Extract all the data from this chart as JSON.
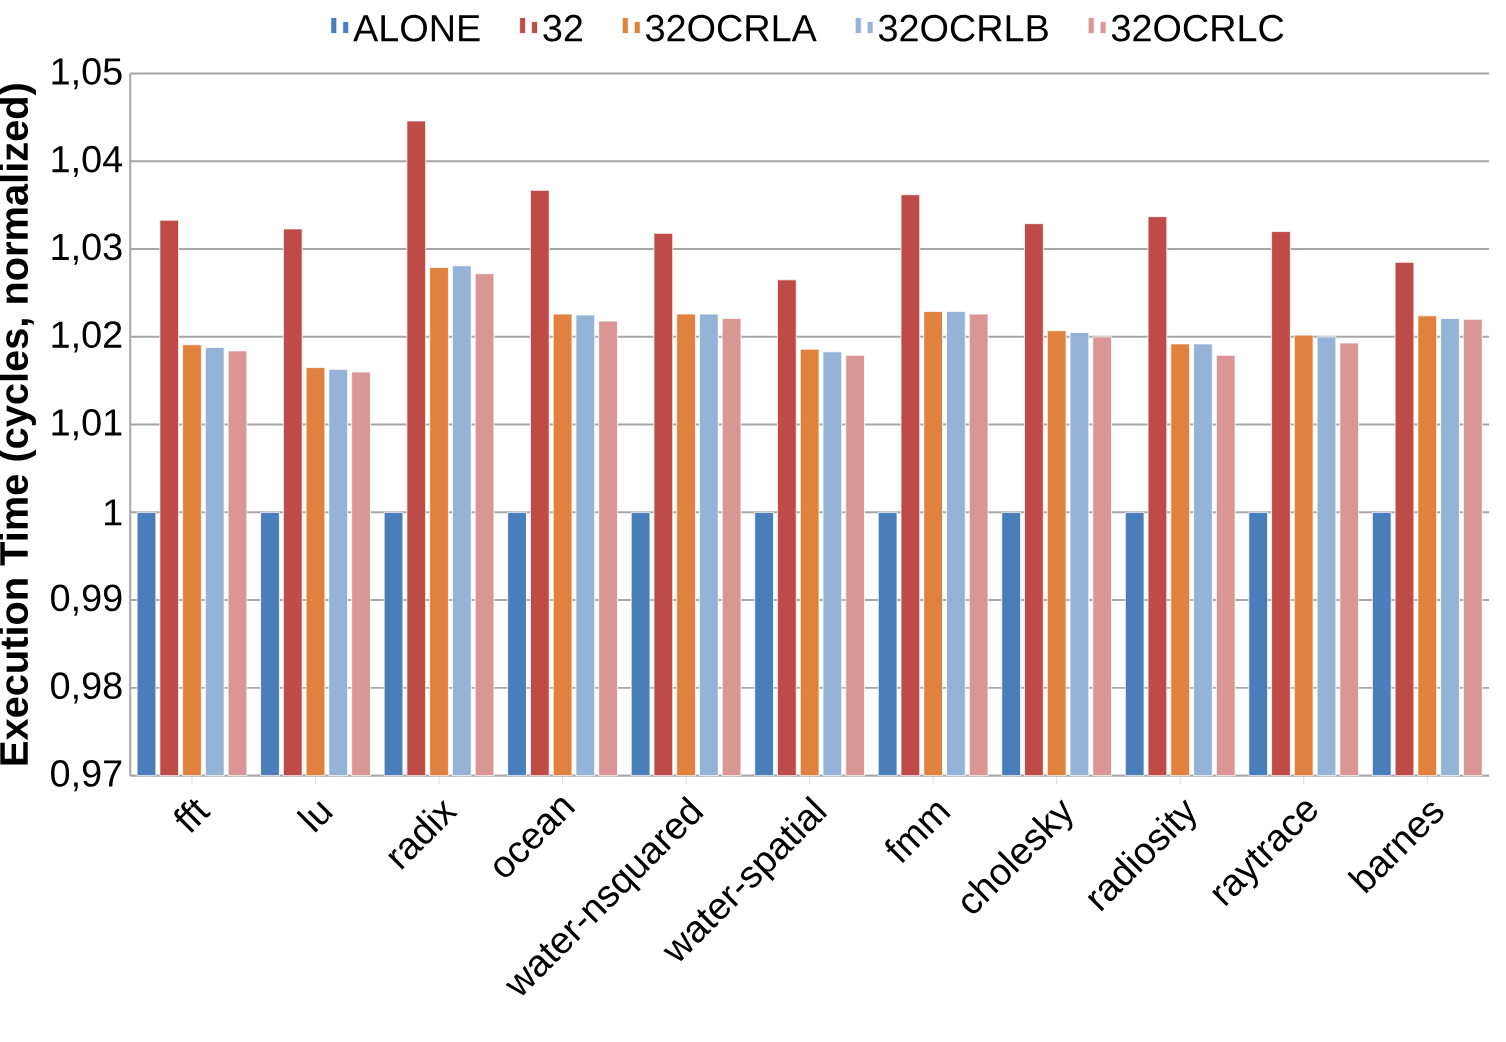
{
  "chart_data": {
    "type": "bar",
    "ylabel": "Execution Time (cycles, normalized)",
    "categories": [
      "fft",
      "lu",
      "radix",
      "ocean",
      "water-nsquared",
      "water-spatial",
      "fmm",
      "cholesky",
      "radiosity",
      "raytrace",
      "barnes"
    ],
    "series": [
      {
        "name": "ALONE",
        "color": "#4a7ebb",
        "values": [
          1,
          1,
          1,
          1,
          1,
          1,
          1,
          1,
          1,
          1,
          1
        ]
      },
      {
        "name": "32",
        "color": "#be4b48",
        "values": [
          1.0333,
          1.0323,
          1.0446,
          1.0367,
          1.0318,
          1.0265,
          1.0362,
          1.0329,
          1.0337,
          1.032,
          1.0285
        ]
      },
      {
        "name": "32OCRLA",
        "color": "#e0823d",
        "values": [
          1.0191,
          1.0165,
          1.0279,
          1.0226,
          1.0226,
          1.0186,
          1.0229,
          1.0207,
          1.0192,
          1.0202,
          1.0224
        ]
      },
      {
        "name": "32OCRLB",
        "color": "#95b3d7",
        "values": [
          1.0188,
          1.0163,
          1.0281,
          1.0225,
          1.0226,
          1.0183,
          1.0229,
          1.0205,
          1.0192,
          1.02,
          1.0221
        ]
      },
      {
        "name": "32OCRLC",
        "color": "#d99694",
        "values": [
          1.0184,
          1.016,
          1.0272,
          1.0218,
          1.0221,
          1.0179,
          1.0226,
          1.02,
          1.0179,
          1.0193,
          1.022
        ]
      }
    ],
    "ylim": [
      0.97,
      1.05
    ],
    "yticks": [
      {
        "value": 0.97,
        "label": "0,97"
      },
      {
        "value": 0.98,
        "label": "0,98"
      },
      {
        "value": 0.99,
        "label": "0,99"
      },
      1,
      {
        "value": 1.01,
        "label": "1,01"
      },
      {
        "value": 1.02,
        "label": "1,02"
      },
      {
        "value": 1.03,
        "label": "1,03"
      },
      {
        "value": 1.04,
        "label": "1,04"
      },
      {
        "value": 1.05,
        "label": "1,05"
      }
    ],
    "grid": "y",
    "legend": "top"
  }
}
